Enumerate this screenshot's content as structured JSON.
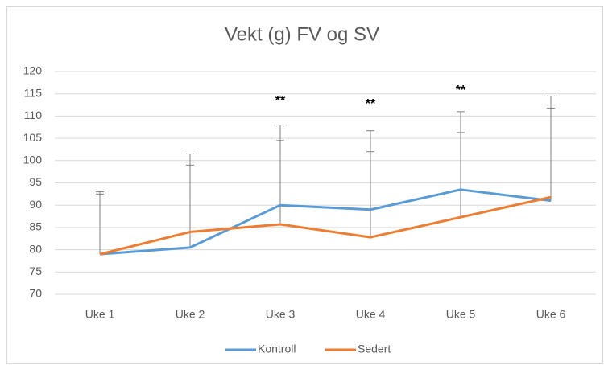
{
  "chart_data": {
    "type": "line",
    "title": "Vekt (g) FV og SV",
    "categories": [
      "Uke 1",
      "Uke 2",
      "Uke 3",
      "Uke 4",
      "Uke 5",
      "Uke 6"
    ],
    "series": [
      {
        "name": "Kontroll",
        "color": "#5b9bd5",
        "values": [
          79,
          80.5,
          90,
          89,
          93.5,
          91
        ],
        "errors": [
          14,
          21,
          18,
          17.7,
          17.5,
          23.5
        ]
      },
      {
        "name": "Sedert",
        "color": "#ed7d31",
        "values": [
          79,
          84,
          85.7,
          82.8,
          87.3,
          91.8
        ],
        "errors": [
          13.5,
          15,
          18.8,
          19.2,
          19,
          20
        ]
      }
    ],
    "annotations": [
      "**",
      "**",
      "**"
    ],
    "ylim": [
      70,
      120
    ],
    "yticks": [
      70,
      75,
      80,
      85,
      90,
      95,
      100,
      105,
      110,
      115,
      120
    ],
    "grid": true,
    "legend": "bottom"
  }
}
